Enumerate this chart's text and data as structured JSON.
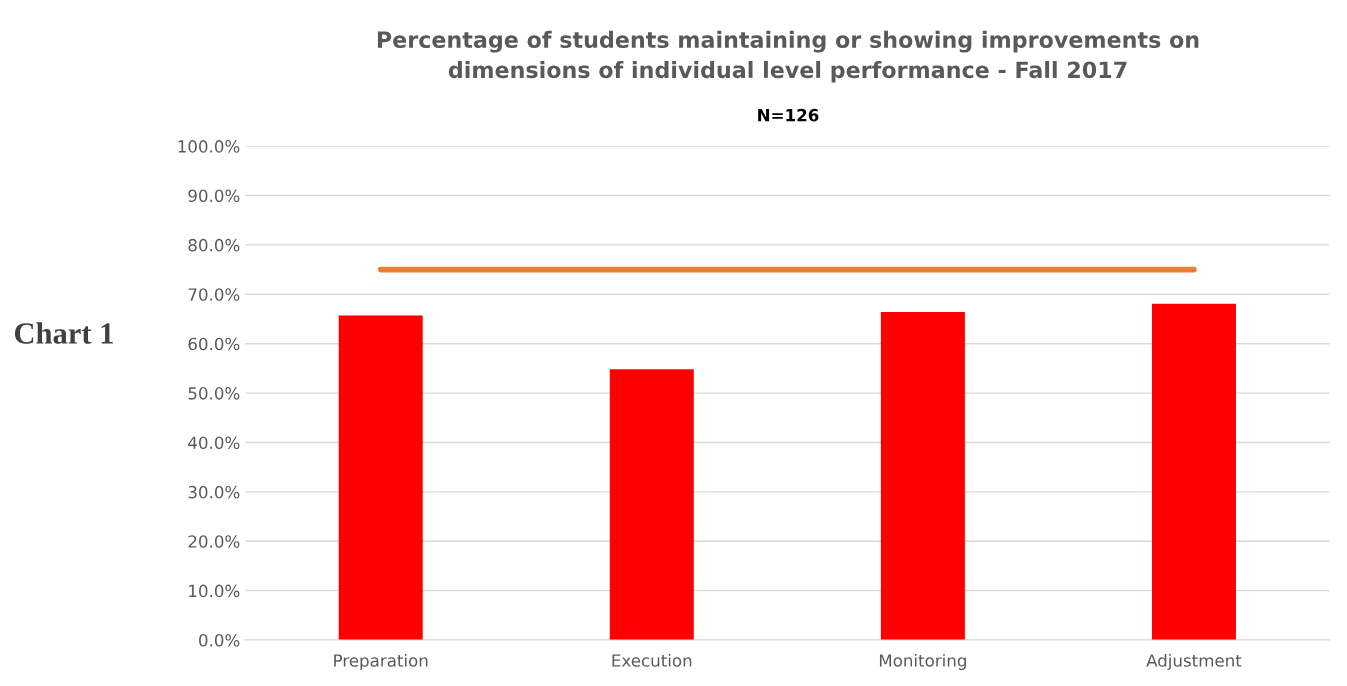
{
  "chart_data": {
    "type": "bar",
    "title": "Percentage of students maintaining or showing improvements on\ndimensions of individual level performance - Fall 2017",
    "subtitle": "N=126",
    "categories": [
      "Preparation",
      "Execution",
      "Monitoring",
      "Adjustment"
    ],
    "series": [
      {
        "color": "#ff0000",
        "values": [
          65.7,
          54.8,
          66.4,
          68.1
        ]
      },
      {
        "type": "line",
        "color": "#ed7d31",
        "values": [
          75,
          75,
          75,
          75
        ]
      }
    ],
    "ylim": [
      0,
      100
    ],
    "yticks": [
      {
        "value": 0,
        "label": "0.0%"
      },
      {
        "value": 10,
        "label": "10.0%"
      },
      {
        "value": 20,
        "label": "20.0%"
      },
      {
        "value": 30,
        "label": "30.0%"
      },
      {
        "value": 40,
        "label": "40.0%"
      },
      {
        "value": 50,
        "label": "50.0%"
      },
      {
        "value": 60,
        "label": "60.0%"
      },
      {
        "value": 70,
        "label": "70.0%"
      },
      {
        "value": 80,
        "label": "80.0%"
      },
      {
        "value": 90,
        "label": "90.0%"
      },
      {
        "value": 100,
        "label": "100.0%"
      }
    ],
    "grid": "y",
    "marker": "none",
    "line_style": "solid",
    "annotations": [
      "Chart 1"
    ]
  }
}
